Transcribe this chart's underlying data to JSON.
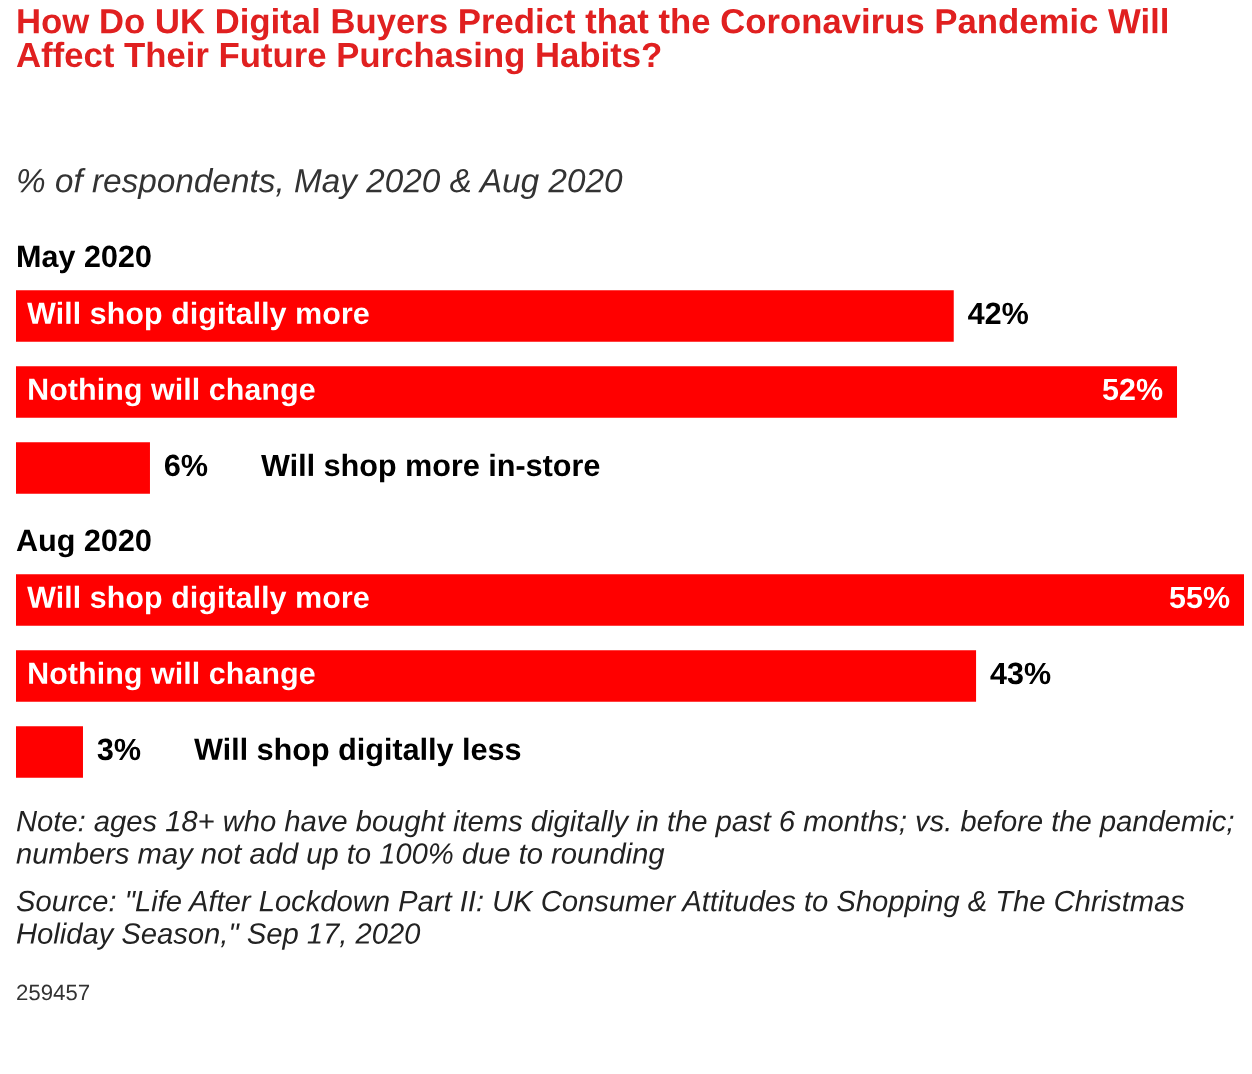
{
  "chart_data": [
    {
      "type": "other",
      "title": "How Do UK Digital Buyers Predict that the Coronavirus Pandemic Will Affect Their Future Purchasing Habits?",
      "subtitle": "% of respondents, May 2020 & Aug 2020"
    },
    {
      "type": "bar",
      "orientation": "horizontal",
      "title": "May 2020",
      "categories": [
        "Will shop digitally more",
        "Nothing will change",
        "Will shop more in-store"
      ],
      "values": [
        42,
        52,
        6
      ],
      "value_labels": [
        "42%",
        "52%",
        "6%"
      ],
      "color": "#ff0000"
    },
    {
      "type": "bar",
      "orientation": "horizontal",
      "title": "Aug 2020",
      "categories": [
        "Will shop digitally more",
        "Nothing will change",
        "Will shop digitally less"
      ],
      "values": [
        55,
        43,
        3
      ],
      "value_labels": [
        "55%",
        "43%",
        "3%"
      ],
      "color": "#ff0000",
      "annotations": [
        "Note: ages 18+ who have bought items digitally in the past 6 months; vs. before the pandemic; numbers may not add up to 100% due to rounding",
        "Source: \"Life After Lockdown Part II: UK Consumer Attitudes to Shopping & The Christmas Holiday Season,\" Sep 17, 2020",
        "259457"
      ]
    }
  ]
}
